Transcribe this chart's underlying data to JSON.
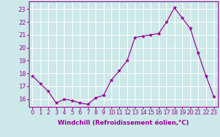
{
  "x": [
    0,
    1,
    2,
    3,
    4,
    5,
    6,
    7,
    8,
    9,
    10,
    11,
    12,
    13,
    14,
    15,
    16,
    17,
    18,
    19,
    20,
    21,
    22,
    23
  ],
  "y": [
    17.8,
    17.2,
    16.6,
    15.7,
    16.0,
    15.9,
    15.7,
    15.6,
    16.1,
    16.3,
    17.5,
    18.2,
    19.0,
    20.8,
    20.9,
    21.0,
    21.1,
    22.0,
    23.1,
    22.3,
    21.5,
    19.6,
    17.8,
    16.2
  ],
  "line_color": "#990099",
  "marker": "*",
  "marker_size": 3.5,
  "xlabel": "Windchill (Refroidissement éolien,°C)",
  "xlabel_fontsize": 6.5,
  "ylabel_ticks": [
    16,
    17,
    18,
    19,
    20,
    21,
    22,
    23
  ],
  "xtick_labels": [
    "0",
    "1",
    "2",
    "3",
    "4",
    "5",
    "6",
    "7",
    "8",
    "9",
    "10",
    "11",
    "12",
    "13",
    "14",
    "15",
    "16",
    "17",
    "18",
    "19",
    "20",
    "21",
    "22",
    "23"
  ],
  "ylim": [
    15.4,
    23.6
  ],
  "xlim": [
    -0.5,
    23.5
  ],
  "background_color": "#cce8e8",
  "grid_color": "#ffffff",
  "tick_color": "#990099",
  "tick_fontsize": 6.0,
  "linewidth": 0.9
}
